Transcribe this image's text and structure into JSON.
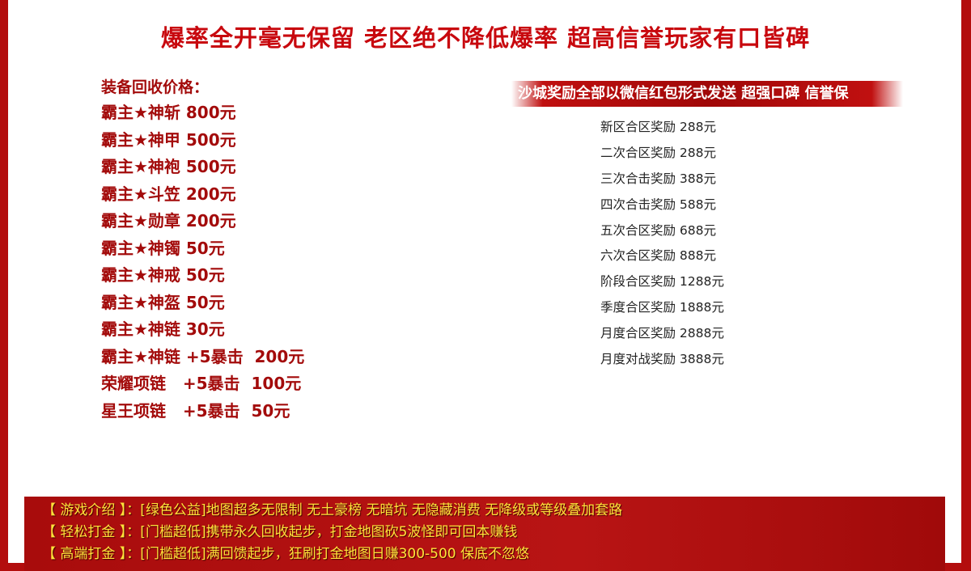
{
  "title": "爆率全开毫无保留 老区绝不降低爆率  超高信誉玩家有口皆碑",
  "recycle": {
    "heading": "装备回收价格：",
    "items": [
      "霸主★神斩 800元",
      "霸主★神甲 500元",
      "霸主★神袍 500元",
      "霸主★斗笠 200元",
      "霸主★勋章 200元",
      "霸主★神镯 50元",
      "霸主★神戒 50元",
      "霸主★神盔 50元",
      "霸主★神链 30元",
      "霸主★神链 +5暴击  200元",
      "荣耀项链   +5暴击  100元",
      "星王项链   +5暴击  50元"
    ]
  },
  "rewards": {
    "banner": "沙城奖励全部以微信红包形式发送 超强口碑 信誉保",
    "items": [
      "新区合区奖励 288元",
      "二次合区奖励 288元",
      "三次合击奖励 388元",
      "四次合击奖励 588元",
      "五次合区奖励 688元",
      "六次合区奖励 888元",
      "阶段合区奖励 1288元",
      "季度合区奖励 1888元",
      "月度合区奖励 2888元",
      "月度对战奖励 3888元"
    ]
  },
  "footer": [
    "【 游戏介绍 】：[绿色公益]地图超多无限制 无土豪榜 无暗坑 无隐藏消费 无降级或等级叠加套路",
    "【 轻松打金 】：[门槛超低]携带永久回收起步，打金地图砍5波怪即可回本赚钱",
    "【 高端打金 】：[门槛超低]满回馈起步，狂刷打金地图日赚300-500 保底不忽悠"
  ]
}
